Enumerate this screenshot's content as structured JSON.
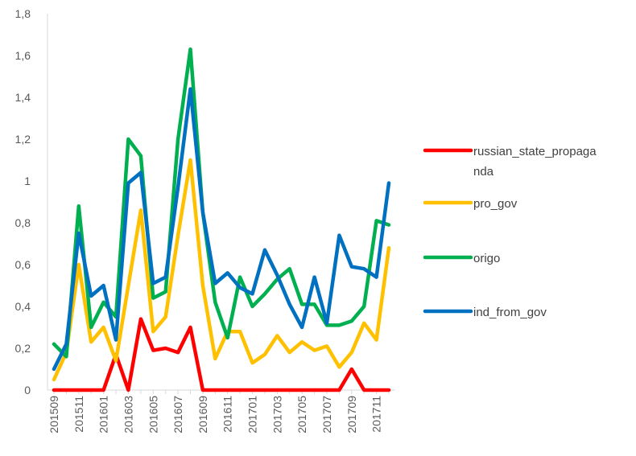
{
  "chart_data": {
    "type": "line",
    "title": "",
    "xlabel": "",
    "ylabel": "",
    "ylim": [
      0,
      1.8
    ],
    "y_ticks": [
      "0",
      "0,2",
      "0,4",
      "0,6",
      "0,8",
      "1",
      "1,2",
      "1,4",
      "1,6",
      "1,8"
    ],
    "grid": false,
    "legend_position": "right",
    "x": [
      "201509",
      "201510",
      "201511",
      "201512",
      "201601",
      "201602",
      "201603",
      "201604",
      "201605",
      "201606",
      "201607",
      "201608",
      "201609",
      "201610",
      "201611",
      "201612",
      "201701",
      "201702",
      "201703",
      "201704",
      "201705",
      "201706",
      "201707",
      "201708",
      "201709",
      "201710",
      "201711",
      "201712"
    ],
    "x_tick_labels": [
      "201509",
      "201511",
      "201601",
      "201603",
      "201605",
      "201607",
      "201609",
      "201611",
      "201701",
      "201703",
      "201705",
      "201707",
      "201709",
      "201711"
    ],
    "series": [
      {
        "name": "russian_state_propaganda",
        "legend_lines": [
          "russian_state_propaga",
          "nda"
        ],
        "color": "#ff0000",
        "values": [
          0,
          0,
          0,
          0,
          0,
          0.17,
          0,
          0.34,
          0.19,
          0.2,
          0.18,
          0.3,
          0,
          0,
          0,
          0,
          0,
          0,
          0,
          0,
          0,
          0,
          0,
          0,
          0.1,
          0,
          0,
          0
        ]
      },
      {
        "name": "pro_gov",
        "legend_lines": [
          "pro_gov"
        ],
        "color": "#ffc000",
        "values": [
          0.05,
          0.18,
          0.6,
          0.23,
          0.3,
          0.14,
          0.5,
          0.86,
          0.28,
          0.35,
          0.74,
          1.1,
          0.5,
          0.15,
          0.28,
          0.28,
          0.13,
          0.17,
          0.26,
          0.18,
          0.23,
          0.19,
          0.21,
          0.11,
          0.18,
          0.32,
          0.24,
          0.68
        ]
      },
      {
        "name": "origo",
        "legend_lines": [
          "origo"
        ],
        "color": "#00b050",
        "values": [
          0.22,
          0.16,
          0.88,
          0.3,
          0.42,
          0.35,
          1.2,
          1.12,
          0.44,
          0.47,
          1.2,
          1.63,
          0.85,
          0.42,
          0.25,
          0.54,
          0.4,
          0.46,
          0.53,
          0.58,
          0.41,
          0.41,
          0.31,
          0.31,
          0.33,
          0.4,
          0.81,
          0.79
        ]
      },
      {
        "name": "ind_from_gov",
        "legend_lines": [
          "ind_from_gov"
        ],
        "color": "#0070c0",
        "values": [
          0.1,
          0.22,
          0.75,
          0.45,
          0.5,
          0.24,
          0.99,
          1.04,
          0.51,
          0.54,
          0.97,
          1.44,
          0.85,
          0.51,
          0.56,
          0.49,
          0.46,
          0.67,
          0.55,
          0.41,
          0.3,
          0.54,
          0.32,
          0.74,
          0.59,
          0.58,
          0.54,
          0.99
        ]
      }
    ]
  }
}
